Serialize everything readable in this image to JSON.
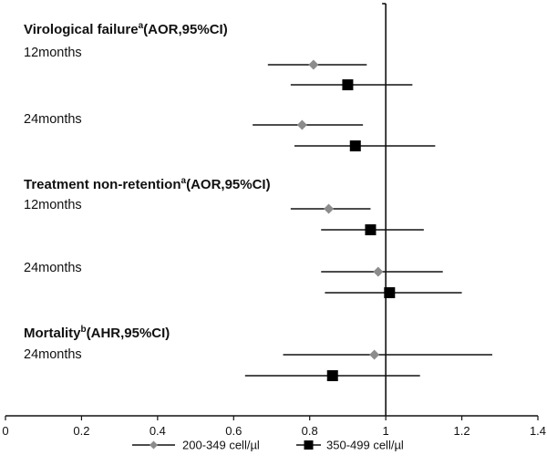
{
  "chart_data": {
    "type": "forest",
    "title": "",
    "xlabel": "",
    "ylabel": "",
    "xlim": [
      0,
      1.4
    ],
    "x_ticks": [
      "0",
      "0.2",
      "0.4",
      "0.6",
      "0.8",
      "1",
      "1.2",
      "1.4"
    ],
    "reference_line": 1,
    "series": [
      {
        "name": "200-349 cell/µl",
        "marker": "diamond",
        "color": "#8c8c8c"
      },
      {
        "name": "350-499 cell/µl",
        "marker": "square",
        "color": "#000000"
      }
    ],
    "groups": [
      {
        "heading": "Virological failure",
        "superscript": "a",
        "measure": "(AOR,95%CI)",
        "rows": [
          {
            "label": "12months",
            "estimates": [
              {
                "series": 0,
                "value": 0.81,
                "ci": [
                  0.69,
                  0.95
                ]
              },
              {
                "series": 1,
                "value": 0.9,
                "ci": [
                  0.75,
                  1.07
                ]
              }
            ]
          },
          {
            "label": "24months",
            "estimates": [
              {
                "series": 0,
                "value": 0.78,
                "ci": [
                  0.65,
                  0.94
                ]
              },
              {
                "series": 1,
                "value": 0.92,
                "ci": [
                  0.76,
                  1.13
                ]
              }
            ]
          }
        ]
      },
      {
        "heading": "Treatment non-retention",
        "superscript": "a",
        "measure": "(AOR,95%CI)",
        "rows": [
          {
            "label": "12months",
            "estimates": [
              {
                "series": 0,
                "value": 0.85,
                "ci": [
                  0.75,
                  0.96
                ]
              },
              {
                "series": 1,
                "value": 0.96,
                "ci": [
                  0.83,
                  1.1
                ]
              }
            ]
          },
          {
            "label": "24months",
            "estimates": [
              {
                "series": 0,
                "value": 0.98,
                "ci": [
                  0.83,
                  1.15
                ]
              },
              {
                "series": 1,
                "value": 1.01,
                "ci": [
                  0.84,
                  1.2
                ]
              }
            ]
          }
        ]
      },
      {
        "heading": "Mortality",
        "superscript": "b",
        "measure": "(AHR,95%CI)",
        "rows": [
          {
            "label": "24months",
            "estimates": [
              {
                "series": 0,
                "value": 0.97,
                "ci": [
                  0.73,
                  1.28
                ]
              },
              {
                "series": 1,
                "value": 0.86,
                "ci": [
                  0.63,
                  1.09
                ]
              }
            ]
          }
        ]
      }
    ]
  }
}
